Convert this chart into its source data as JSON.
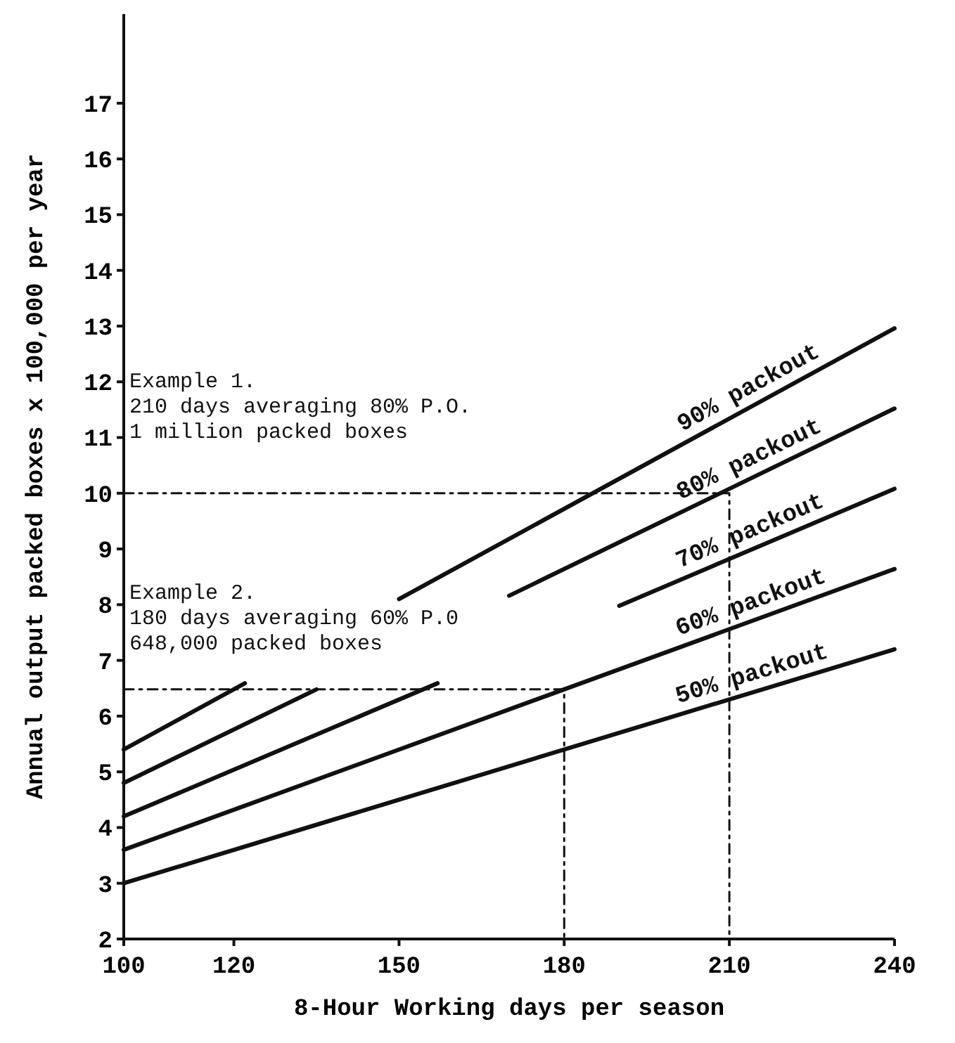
{
  "chart_data": {
    "type": "line",
    "xlabel": "8-Hour Working days per season",
    "ylabel": "Annual output packed boxes x 100,000 per year",
    "xlim": [
      100,
      240
    ],
    "xticks": [
      100,
      120,
      150,
      180,
      210,
      240
    ],
    "ylim": [
      2,
      18.6
    ],
    "yticks": [
      2,
      3,
      4,
      5,
      6,
      7,
      8,
      9,
      10,
      11,
      12,
      13,
      14,
      15,
      16,
      17
    ],
    "grid": false,
    "marker": "none",
    "series": [
      {
        "name": "90% packout",
        "color": "#111111",
        "x": [
          100,
          122,
          136,
          150,
          240
        ],
        "values": [
          5.4,
          6.59,
          null,
          8.1,
          12.96
        ]
      },
      {
        "name": "80% packout",
        "color": "#111111",
        "x": [
          100,
          135,
          150,
          170,
          240
        ],
        "values": [
          4.8,
          6.48,
          null,
          8.16,
          11.52
        ]
      },
      {
        "name": "70% packout",
        "color": "#111111",
        "x": [
          100,
          157,
          175,
          190,
          240
        ],
        "values": [
          4.2,
          6.59,
          null,
          7.98,
          10.08
        ]
      },
      {
        "name": "60% packout",
        "color": "#111111",
        "x": [
          100,
          240
        ],
        "values": [
          3.6,
          8.64
        ]
      },
      {
        "name": "50% packout",
        "color": "#111111",
        "x": [
          100,
          240
        ],
        "values": [
          3.0,
          7.2
        ]
      },
      {
        "color": "#111111",
        "line_style": "dashed",
        "x": [
          100,
          210,
          210
        ],
        "values": [
          10,
          10,
          2
        ]
      },
      {
        "color": "#111111",
        "line_style": "dashed",
        "x": [
          100,
          180,
          180
        ],
        "values": [
          6.48,
          6.48,
          2
        ]
      }
    ],
    "annotations": [
      "Example 1.\n210 days averaging 80% P.O.\n1 million packed boxes",
      "Example 2.\n180 days averaging 60% P.0\n648,000 packed boxes"
    ]
  }
}
